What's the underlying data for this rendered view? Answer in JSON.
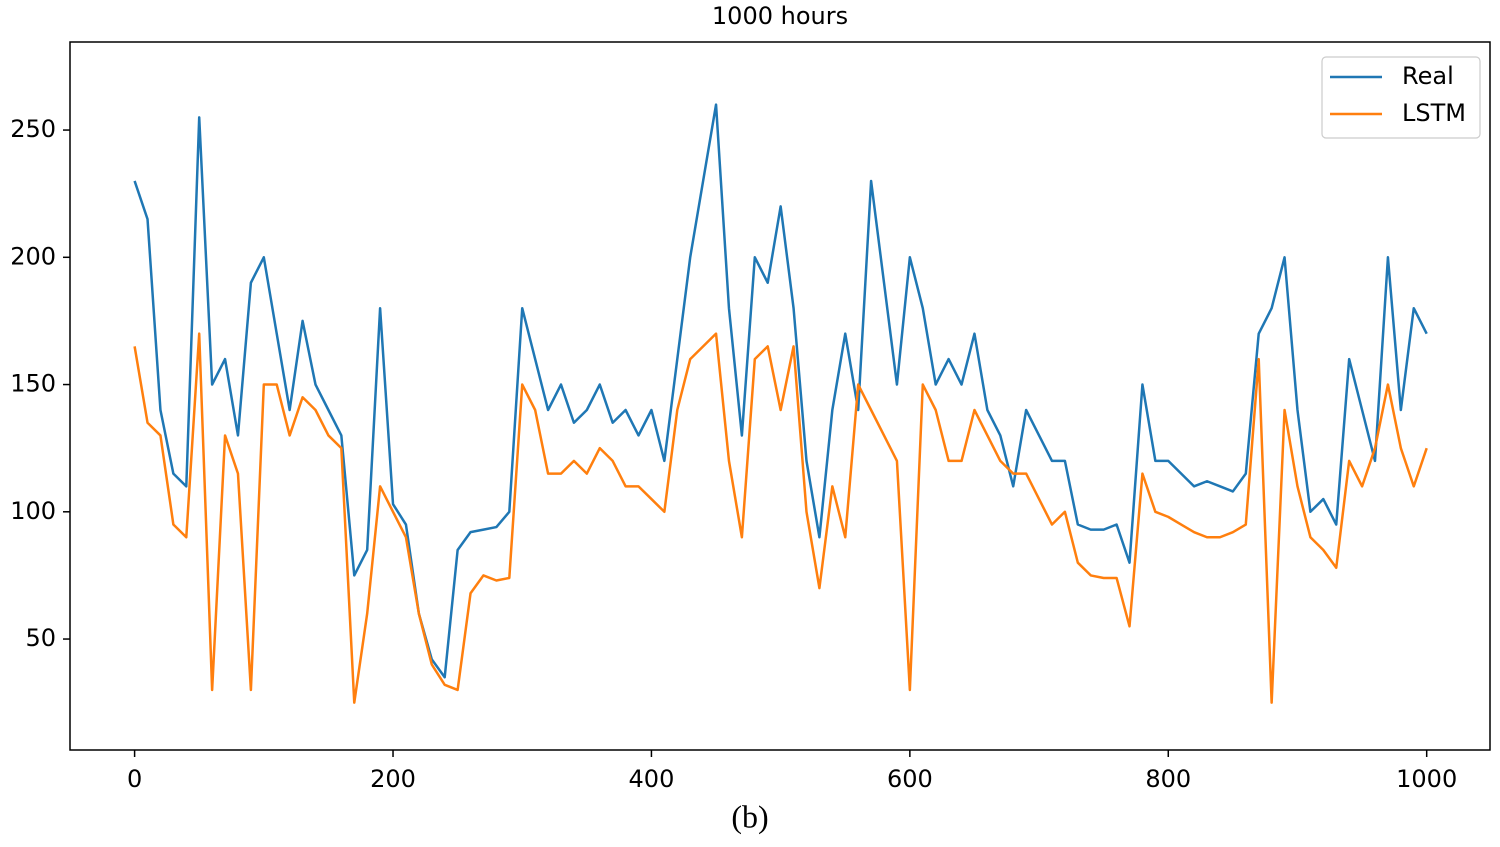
{
  "chart_data": {
    "type": "line",
    "title": "1000 hours",
    "caption": "(b)",
    "x": [
      0,
      10,
      20,
      30,
      40,
      50,
      60,
      70,
      80,
      90,
      100,
      110,
      120,
      130,
      140,
      150,
      160,
      170,
      180,
      190,
      200,
      210,
      220,
      230,
      240,
      250,
      260,
      270,
      280,
      290,
      300,
      310,
      320,
      330,
      340,
      350,
      360,
      370,
      380,
      390,
      400,
      410,
      420,
      430,
      440,
      450,
      460,
      470,
      480,
      490,
      500,
      510,
      520,
      530,
      540,
      550,
      560,
      570,
      580,
      590,
      600,
      610,
      620,
      630,
      640,
      650,
      660,
      670,
      680,
      690,
      700,
      710,
      720,
      730,
      740,
      750,
      760,
      770,
      780,
      790,
      800,
      810,
      820,
      830,
      840,
      850,
      860,
      870,
      880,
      890,
      900,
      910,
      920,
      930,
      940,
      950,
      960,
      970,
      980,
      990,
      1000
    ],
    "series": [
      {
        "name": "Real",
        "color": "#1f77b4",
        "values": [
          230,
          215,
          140,
          115,
          110,
          255,
          150,
          160,
          130,
          190,
          200,
          170,
          140,
          175,
          150,
          140,
          130,
          75,
          85,
          180,
          103,
          95,
          60,
          42,
          35,
          85,
          92,
          93,
          94,
          100,
          180,
          160,
          140,
          150,
          135,
          140,
          150,
          135,
          140,
          130,
          140,
          120,
          160,
          200,
          230,
          260,
          180,
          130,
          200,
          190,
          220,
          180,
          120,
          90,
          140,
          170,
          140,
          230,
          190,
          150,
          200,
          180,
          150,
          160,
          150,
          170,
          140,
          130,
          110,
          140,
          130,
          120,
          120,
          95,
          93,
          93,
          95,
          80,
          150,
          120,
          120,
          115,
          110,
          112,
          110,
          108,
          115,
          170,
          180,
          200,
          140,
          100,
          105,
          95,
          160,
          140,
          120,
          200,
          140,
          180,
          170
        ]
      },
      {
        "name": "LSTM",
        "color": "#ff7f0e",
        "values": [
          165,
          135,
          130,
          95,
          90,
          170,
          30,
          130,
          115,
          30,
          150,
          150,
          130,
          145,
          140,
          130,
          125,
          25,
          60,
          110,
          100,
          90,
          60,
          40,
          32,
          30,
          68,
          75,
          73,
          74,
          150,
          140,
          115,
          115,
          120,
          115,
          125,
          120,
          110,
          110,
          105,
          100,
          140,
          160,
          165,
          170,
          120,
          90,
          160,
          165,
          140,
          165,
          100,
          70,
          110,
          90,
          150,
          140,
          130,
          120,
          30,
          150,
          140,
          120,
          120,
          140,
          130,
          120,
          115,
          115,
          105,
          95,
          100,
          80,
          75,
          74,
          74,
          55,
          115,
          100,
          98,
          95,
          92,
          90,
          90,
          92,
          95,
          160,
          25,
          140,
          110,
          90,
          85,
          78,
          120,
          110,
          125,
          150,
          125,
          110,
          125
        ]
      }
    ],
    "xlim": [
      -50,
      1049
    ],
    "ylim": [
      6.4,
      284.6
    ],
    "xticks": [
      0,
      200,
      400,
      600,
      800,
      1000
    ],
    "yticks": [
      50,
      100,
      150,
      200,
      250
    ],
    "legend": "upper right"
  }
}
